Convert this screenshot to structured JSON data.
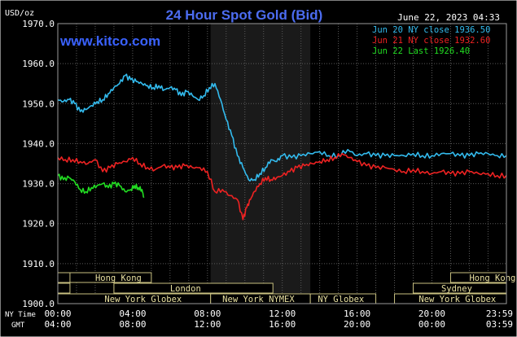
{
  "chart_data": {
    "type": "line",
    "title": "24 Hour Spot Gold (Bid)",
    "watermark": "www.kitco.com",
    "timestamp": "June 22, 2023 04:33",
    "ylabel": "USD/oz",
    "ylim": [
      1900,
      1970
    ],
    "y_ticks": [
      "1970.0",
      "1960.0",
      "1950.0",
      "1940.0",
      "1930.0",
      "1920.0",
      "1910.0",
      "1900.0"
    ],
    "x_row1_label": "NY Time",
    "x_row2_label": "GMT",
    "x_ticks_ny": [
      "00:00",
      "04:00",
      "08:00",
      "12:00",
      "16:00",
      "20:00",
      "23:59"
    ],
    "x_ticks_gmt": [
      "04:00",
      "08:00",
      "12:00",
      "16:00",
      "20:00",
      "00:00",
      "03:59"
    ],
    "grid": true,
    "legend_position": "top-right",
    "colors": {
      "background": "#000000",
      "grid": "#5a5a5a",
      "text": "#ffffff",
      "title": "#4c6cf0",
      "session_box_fill": "#000000",
      "session_box_border": "#c8c080",
      "session_text": "#e8e0a0",
      "shaded_region": "#1a1a1a"
    },
    "series": [
      {
        "name": "Jun 20 NY close 1936.50",
        "color": "#33bbee",
        "x": [
          0,
          0.3,
          0.6,
          0.9,
          1.2,
          1.5,
          1.8,
          2.1,
          2.4,
          2.7,
          3.0,
          3.3,
          3.6,
          3.9,
          4.2,
          4.5,
          4.8,
          5.1,
          5.4,
          5.7,
          6.0,
          6.3,
          6.6,
          6.9,
          7.2,
          7.5,
          7.8,
          8.1,
          8.4,
          8.7,
          9.0,
          9.3,
          9.6,
          9.9,
          10.2,
          10.5,
          10.8,
          11.1,
          11.4,
          11.7,
          12.0,
          12.5,
          13.0,
          13.5,
          14.0,
          14.5,
          15.0,
          15.5,
          16.0,
          16.5,
          17.0,
          17.5,
          18.0,
          18.5,
          19.0,
          19.5,
          20.0,
          20.5,
          21.0,
          21.5,
          22.0,
          22.5,
          23.0,
          23.5,
          23.98
        ],
        "values": [
          1951.0,
          1950.5,
          1951.0,
          1950.0,
          1948.0,
          1948.5,
          1949.5,
          1950.5,
          1951.0,
          1952.5,
          1954.0,
          1955.0,
          1957.0,
          1956.0,
          1955.5,
          1955.0,
          1954.5,
          1954.0,
          1954.5,
          1953.5,
          1954.0,
          1953.5,
          1952.0,
          1953.0,
          1952.0,
          1951.0,
          1952.0,
          1954.0,
          1955.0,
          1951.0,
          1946.0,
          1942.0,
          1937.0,
          1934.0,
          1931.0,
          1931.0,
          1932.5,
          1934.0,
          1936.0,
          1935.5,
          1937.0,
          1936.5,
          1937.0,
          1937.5,
          1938.0,
          1937.0,
          1937.0,
          1938.5,
          1937.0,
          1937.5,
          1937.0,
          1937.0,
          1937.0,
          1937.0,
          1937.5,
          1937.0,
          1937.0,
          1937.5,
          1937.5,
          1937.0,
          1937.0,
          1937.5,
          1937.5,
          1937.0,
          1937.0
        ]
      },
      {
        "name": "Jun 21 NY close 1932.60",
        "color": "#ee2222",
        "x": [
          0,
          0.4,
          0.8,
          1.2,
          1.6,
          2.0,
          2.4,
          2.8,
          3.2,
          3.6,
          4.0,
          4.4,
          4.8,
          5.2,
          5.6,
          6.0,
          6.4,
          6.8,
          7.2,
          7.6,
          8.0,
          8.4,
          8.8,
          9.2,
          9.6,
          9.9,
          10.1,
          10.3,
          10.5,
          10.8,
          11.1,
          11.4,
          11.7,
          12.0,
          12.4,
          12.8,
          13.2,
          13.6,
          14.0,
          14.4,
          14.8,
          15.2,
          15.6,
          16.0,
          16.5,
          17.0,
          17.5,
          18.0,
          18.5,
          19.0,
          19.5,
          20.0,
          20.5,
          21.0,
          21.5,
          22.0,
          22.5,
          23.0,
          23.5,
          23.98
        ],
        "values": [
          1936.5,
          1936.0,
          1936.0,
          1935.5,
          1935.0,
          1936.0,
          1933.0,
          1934.0,
          1935.0,
          1935.5,
          1936.5,
          1935.0,
          1934.0,
          1933.5,
          1934.5,
          1934.0,
          1934.0,
          1934.5,
          1934.0,
          1934.0,
          1933.0,
          1928.0,
          1928.5,
          1927.0,
          1926.0,
          1921.0,
          1924.0,
          1926.0,
          1928.0,
          1930.0,
          1931.5,
          1931.0,
          1931.5,
          1932.0,
          1933.0,
          1934.0,
          1934.5,
          1935.0,
          1935.5,
          1936.0,
          1936.5,
          1937.5,
          1936.5,
          1935.5,
          1934.5,
          1934.0,
          1934.0,
          1933.5,
          1933.0,
          1933.5,
          1933.0,
          1932.5,
          1933.0,
          1932.5,
          1932.5,
          1933.0,
          1932.5,
          1932.5,
          1932.0,
          1932.0
        ]
      },
      {
        "name": "Jun 22 Last 1926.40",
        "color": "#22dd22",
        "x": [
          0,
          0.3,
          0.6,
          0.9,
          1.2,
          1.5,
          1.8,
          2.1,
          2.4,
          2.7,
          3.0,
          3.3,
          3.6,
          3.9,
          4.1,
          4.3,
          4.5,
          4.6
        ],
        "values": [
          1932.0,
          1931.0,
          1931.5,
          1930.5,
          1928.5,
          1928.0,
          1929.0,
          1929.5,
          1930.0,
          1929.0,
          1930.0,
          1929.5,
          1928.0,
          1928.5,
          1929.5,
          1929.0,
          1928.5,
          1926.5
        ]
      }
    ],
    "shaded_range": [
      8.17,
      13.5
    ],
    "sessions": [
      {
        "label": "Hong Kong",
        "start": -3,
        "end": 5.0,
        "row": 1,
        "label_at": 2.0
      },
      {
        "label": "London",
        "start": 3.0,
        "end": 11.5,
        "row": 2,
        "label_at": 6.0
      },
      {
        "label": "New York Globex",
        "start": 0,
        "end": 8.17,
        "row": 3,
        "label_at": 2.5
      },
      {
        "label": "New York NYMEX",
        "start": 8.17,
        "end": 13.5,
        "row": 3,
        "label_at": 8.8
      },
      {
        "label": "NY Globex",
        "start": 13.5,
        "end": 17.0,
        "row": 3,
        "label_at": 13.9
      },
      {
        "label": "Sydney",
        "start": 19.0,
        "end": 27.0,
        "row": 2,
        "label_at": 20.5
      },
      {
        "label": "New York Globex",
        "start": 18.0,
        "end": 27.0,
        "row": 3,
        "label_at": 19.3
      },
      {
        "label": "Hong Kong",
        "start": 21.0,
        "end": 27.0,
        "row": 1,
        "label_at": 22.0
      },
      {
        "label": "",
        "start": -3,
        "end": 0.65,
        "row": 2,
        "label_at": 0
      },
      {
        "label": "",
        "start": 0,
        "end": 0.65,
        "row": 1,
        "label_at": 0
      }
    ]
  }
}
